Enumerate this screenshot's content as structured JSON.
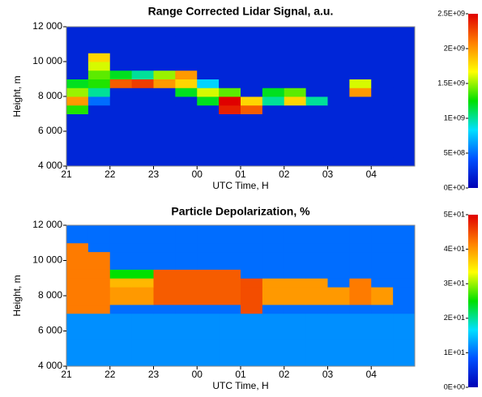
{
  "chart_data": [
    {
      "type": "heatmap",
      "title": "Range Corrected Lidar Signal, a.u.",
      "xlabel": "UTC Time, H",
      "ylabel": "Height, m",
      "xbins": [
        21,
        21.5,
        22,
        22.5,
        23,
        23.5,
        24,
        24.5,
        25,
        25.5,
        26,
        26.5,
        27,
        27.5,
        28,
        28.5,
        29
      ],
      "ybins": [
        4000,
        4500,
        5000,
        5500,
        6000,
        6500,
        7000,
        7500,
        8000,
        8500,
        9000,
        9500,
        10000,
        10500,
        11000,
        11500,
        12000
      ],
      "z": [
        [
          200000000.0,
          200000000.0,
          200000000.0,
          200000000.0,
          200000000.0,
          200000000.0,
          200000000.0,
          200000000.0,
          200000000.0,
          200000000.0,
          200000000.0,
          200000000.0,
          200000000.0,
          200000000.0,
          200000000.0,
          200000000.0
        ],
        [
          200000000.0,
          200000000.0,
          200000000.0,
          200000000.0,
          200000000.0,
          200000000.0,
          200000000.0,
          200000000.0,
          200000000.0,
          200000000.0,
          200000000.0,
          200000000.0,
          200000000.0,
          200000000.0,
          200000000.0,
          200000000.0
        ],
        [
          200000000.0,
          200000000.0,
          200000000.0,
          200000000.0,
          200000000.0,
          200000000.0,
          200000000.0,
          200000000.0,
          200000000.0,
          200000000.0,
          200000000.0,
          200000000.0,
          200000000.0,
          200000000.0,
          200000000.0,
          200000000.0
        ],
        [
          200000000.0,
          200000000.0,
          200000000.0,
          200000000.0,
          200000000.0,
          200000000.0,
          200000000.0,
          200000000.0,
          200000000.0,
          200000000.0,
          200000000.0,
          200000000.0,
          200000000.0,
          200000000.0,
          200000000.0,
          200000000.0
        ],
        [
          200000000.0,
          200000000.0,
          200000000.0,
          200000000.0,
          200000000.0,
          200000000.0,
          200000000.0,
          200000000.0,
          200000000.0,
          200000000.0,
          200000000.0,
          200000000.0,
          200000000.0,
          200000000.0,
          200000000.0,
          200000000.0
        ],
        [
          200000000.0,
          200000000.0,
          200000000.0,
          200000000.0,
          200000000.0,
          200000000.0,
          200000000.0,
          200000000.0,
          200000000.0,
          200000000.0,
          200000000.0,
          200000000.0,
          200000000.0,
          200000000.0,
          200000000.0,
          200000000.0
        ],
        [
          1300000000.0,
          200000000.0,
          200000000.0,
          200000000.0,
          200000000.0,
          200000000.0,
          200000000.0,
          2400000000.0,
          2200000000.0,
          200000000.0,
          200000000.0,
          200000000.0,
          200000000.0,
          200000000.0,
          200000000.0,
          200000000.0
        ],
        [
          2000000000.0,
          500000000.0,
          200000000.0,
          200000000.0,
          200000000.0,
          200000000.0,
          1200000000.0,
          2500000000.0,
          1800000000.0,
          1000000000.0,
          1800000000.0,
          1000000000.0,
          200000000.0,
          200000000.0,
          200000000.0,
          200000000.0
        ],
        [
          1500000000.0,
          1000000000.0,
          200000000.0,
          200000000.0,
          200000000.0,
          1200000000.0,
          1600000000.0,
          1400000000.0,
          200000000.0,
          1200000000.0,
          1400000000.0,
          200000000.0,
          200000000.0,
          2000000000.0,
          200000000.0,
          200000000.0
        ],
        [
          1200000000.0,
          1300000000.0,
          2200000000.0,
          2300000000.0,
          2000000000.0,
          1800000000.0,
          800000000.0,
          200000000.0,
          200000000.0,
          200000000.0,
          200000000.0,
          200000000.0,
          200000000.0,
          1600000000.0,
          200000000.0,
          200000000.0
        ],
        [
          200000000.0,
          1400000000.0,
          1200000000.0,
          1000000000.0,
          1500000000.0,
          2000000000.0,
          200000000.0,
          200000000.0,
          200000000.0,
          200000000.0,
          200000000.0,
          200000000.0,
          200000000.0,
          200000000.0,
          200000000.0,
          200000000.0
        ],
        [
          200000000.0,
          1600000000.0,
          200000000.0,
          200000000.0,
          200000000.0,
          200000000.0,
          200000000.0,
          200000000.0,
          200000000.0,
          200000000.0,
          200000000.0,
          200000000.0,
          200000000.0,
          200000000.0,
          200000000.0,
          200000000.0
        ],
        [
          200000000.0,
          1800000000.0,
          200000000.0,
          200000000.0,
          200000000.0,
          200000000.0,
          200000000.0,
          200000000.0,
          200000000.0,
          200000000.0,
          200000000.0,
          200000000.0,
          200000000.0,
          200000000.0,
          200000000.0,
          200000000.0
        ],
        [
          200000000.0,
          200000000.0,
          200000000.0,
          200000000.0,
          200000000.0,
          200000000.0,
          200000000.0,
          200000000.0,
          200000000.0,
          200000000.0,
          200000000.0,
          200000000.0,
          200000000.0,
          200000000.0,
          200000000.0,
          200000000.0
        ],
        [
          200000000.0,
          200000000.0,
          200000000.0,
          200000000.0,
          200000000.0,
          200000000.0,
          200000000.0,
          200000000.0,
          200000000.0,
          200000000.0,
          200000000.0,
          200000000.0,
          200000000.0,
          200000000.0,
          200000000.0,
          200000000.0
        ],
        [
          200000000.0,
          200000000.0,
          200000000.0,
          200000000.0,
          200000000.0,
          200000000.0,
          200000000.0,
          200000000.0,
          200000000.0,
          200000000.0,
          200000000.0,
          200000000.0,
          200000000.0,
          200000000.0,
          200000000.0,
          200000000.0
        ]
      ],
      "xlim": [
        21,
        29
      ],
      "ylim": [
        4000,
        12000
      ],
      "xticks": [
        21,
        22,
        23,
        {
          "value": 24,
          "label": "00"
        },
        {
          "value": 25,
          "label": "01"
        },
        {
          "value": 26,
          "label": "02"
        },
        {
          "value": 27,
          "label": "03"
        },
        {
          "value": 28,
          "label": "04"
        }
      ],
      "yticks": [
        {
          "value": 4000,
          "label": "4 000"
        },
        {
          "value": 6000,
          "label": "6 000"
        },
        {
          "value": 8000,
          "label": "8 000"
        },
        {
          "value": 10000,
          "label": "10 000"
        },
        {
          "value": 12000,
          "label": "12 000"
        }
      ],
      "clim": [
        0,
        2500000000
      ],
      "cticks": [
        {
          "value": 0,
          "label": "0E+00"
        },
        {
          "value": 500000000,
          "label": "5E+08"
        },
        {
          "value": 1000000000,
          "label": "1E+09"
        },
        {
          "value": 1500000000,
          "label": "1.5E+09"
        },
        {
          "value": 2000000000,
          "label": "2E+09"
        },
        {
          "value": 2500000000,
          "label": "2.5E+09"
        }
      ],
      "colormap": [
        "#0000b4",
        "#0050ff",
        "#00e0ff",
        "#00e000",
        "#ffff00",
        "#ff8000",
        "#e00000"
      ]
    },
    {
      "type": "heatmap",
      "title": "Particle Depolarization, %",
      "xlabel": "UTC Time, H",
      "ylabel": "Height, m",
      "xbins": [
        21,
        21.5,
        22,
        22.5,
        23,
        23.5,
        24,
        24.5,
        25,
        25.5,
        26,
        26.5,
        27,
        27.5,
        28,
        28.5,
        29
      ],
      "ybins": [
        4000,
        4500,
        5000,
        5500,
        6000,
        6500,
        7000,
        7500,
        8000,
        8500,
        9000,
        9500,
        10000,
        10500,
        11000,
        11500,
        12000
      ],
      "z": [
        [
          12,
          12,
          12,
          12,
          12,
          12,
          12,
          12,
          12,
          12,
          12,
          12,
          12,
          12,
          12,
          12
        ],
        [
          12,
          12,
          12,
          12,
          12,
          12,
          12,
          12,
          12,
          12,
          12,
          12,
          12,
          12,
          12,
          12
        ],
        [
          12,
          12,
          12,
          12,
          12,
          12,
          12,
          12,
          12,
          12,
          12,
          12,
          12,
          12,
          12,
          12
        ],
        [
          12,
          12,
          12,
          12,
          12,
          12,
          12,
          12,
          12,
          12,
          12,
          12,
          12,
          12,
          12,
          12
        ],
        [
          12,
          12,
          12,
          12,
          12,
          12,
          12,
          12,
          12,
          12,
          12,
          12,
          12,
          12,
          12,
          12
        ],
        [
          12,
          12,
          12,
          12,
          12,
          12,
          12,
          12,
          12,
          12,
          12,
          12,
          12,
          12,
          12,
          12
        ],
        [
          42,
          42,
          10,
          10,
          10,
          10,
          10,
          10,
          45,
          10,
          10,
          10,
          10,
          10,
          10,
          10
        ],
        [
          42,
          42,
          40,
          40,
          44,
          44,
          44,
          44,
          45,
          40,
          40,
          40,
          40,
          42,
          40,
          10
        ],
        [
          42,
          42,
          40,
          40,
          44,
          44,
          44,
          44,
          45,
          40,
          40,
          40,
          40,
          42,
          40,
          10
        ],
        [
          42,
          42,
          38,
          38,
          44,
          44,
          44,
          44,
          45,
          40,
          40,
          40,
          10,
          42,
          10,
          10
        ],
        [
          42,
          42,
          25,
          25,
          44,
          44,
          44,
          44,
          10,
          10,
          10,
          10,
          10,
          10,
          10,
          10
        ],
        [
          42,
          42,
          10,
          10,
          10,
          10,
          10,
          10,
          10,
          10,
          10,
          10,
          10,
          10,
          10,
          10
        ],
        [
          42,
          42,
          10,
          10,
          10,
          10,
          10,
          10,
          10,
          10,
          10,
          10,
          10,
          10,
          10,
          10
        ],
        [
          42,
          10,
          10,
          10,
          10,
          10,
          10,
          10,
          10,
          10,
          10,
          10,
          10,
          10,
          10,
          10
        ],
        [
          10,
          10,
          10,
          10,
          10,
          10,
          10,
          10,
          10,
          10,
          10,
          10,
          10,
          10,
          10,
          10
        ],
        [
          10,
          10,
          10,
          10,
          10,
          10,
          10,
          10,
          10,
          10,
          10,
          10,
          10,
          10,
          10,
          10
        ]
      ],
      "xlim": [
        21,
        29
      ],
      "ylim": [
        4000,
        12000
      ],
      "xticks": [
        21,
        22,
        23,
        {
          "value": 24,
          "label": "00"
        },
        {
          "value": 25,
          "label": "01"
        },
        {
          "value": 26,
          "label": "02"
        },
        {
          "value": 27,
          "label": "03"
        },
        {
          "value": 28,
          "label": "04"
        }
      ],
      "yticks": [
        {
          "value": 4000,
          "label": "4 000"
        },
        {
          "value": 6000,
          "label": "6 000"
        },
        {
          "value": 8000,
          "label": "8 000"
        },
        {
          "value": 10000,
          "label": "10 000"
        },
        {
          "value": 12000,
          "label": "12 000"
        }
      ],
      "clim": [
        0,
        50
      ],
      "cticks": [
        {
          "value": 0,
          "label": "0E+00"
        },
        {
          "value": 10,
          "label": "1E+01"
        },
        {
          "value": 20,
          "label": "2E+01"
        },
        {
          "value": 30,
          "label": "3E+01"
        },
        {
          "value": 40,
          "label": "4E+01"
        },
        {
          "value": 50,
          "label": "5E+01"
        }
      ],
      "colormap": [
        "#0000b4",
        "#0050ff",
        "#00e0ff",
        "#00e000",
        "#ffff00",
        "#ff8000",
        "#e00000"
      ]
    }
  ]
}
